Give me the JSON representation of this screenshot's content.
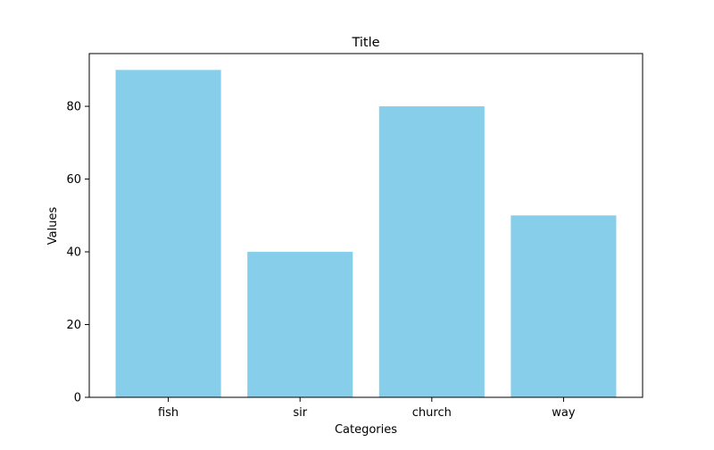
{
  "chart_data": {
    "type": "bar",
    "title": "Title",
    "xlabel": "Categories",
    "ylabel": "Values",
    "categories": [
      "fish",
      "sir",
      "church",
      "way"
    ],
    "values": [
      90,
      40,
      80,
      50
    ],
    "ylim": [
      0,
      94.5
    ],
    "yticks": [
      0,
      20,
      40,
      60,
      80
    ],
    "grid": false,
    "legend": "none",
    "bar_color": "#87CEEB"
  }
}
